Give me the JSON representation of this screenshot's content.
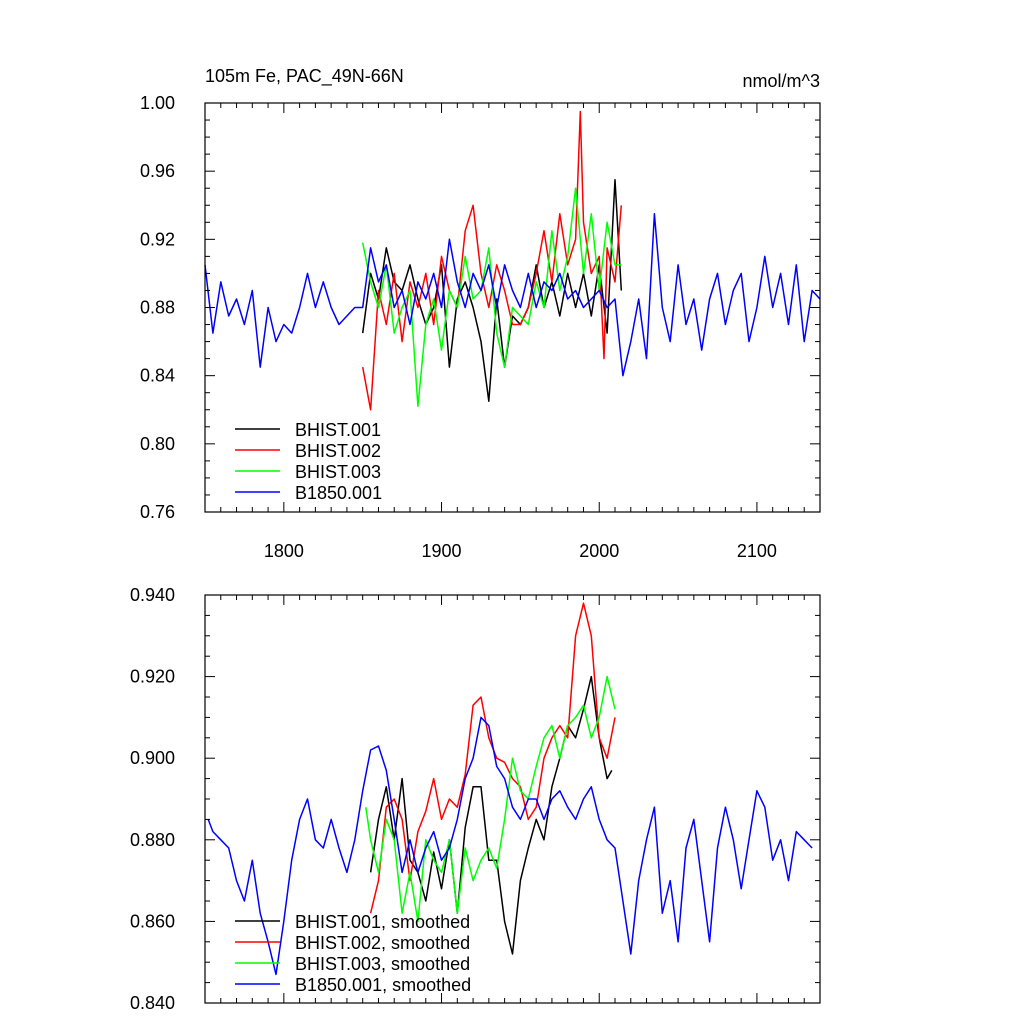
{
  "chart_data": [
    {
      "type": "line",
      "title": "105m Fe, PAC_49N-66N",
      "units": "nmol/m^3",
      "xlim": [
        1750,
        2140
      ],
      "ylim": [
        0.76,
        1.0
      ],
      "xticks": [
        1800,
        1900,
        2000,
        2100
      ],
      "xtick_labels": [
        "1800",
        "1900",
        "2000",
        "2100"
      ],
      "yticks": [
        0.76,
        0.8,
        0.84,
        0.88,
        0.92,
        0.96,
        1.0
      ],
      "ytick_labels": [
        "0.76",
        "0.80",
        "0.84",
        "0.88",
        "0.92",
        "0.96",
        "1.00"
      ],
      "legend_position": "bottom-left",
      "series": [
        {
          "name": "BHIST.001",
          "color": "#000000",
          "x": [
            1850,
            1855,
            1860,
            1865,
            1870,
            1875,
            1880,
            1885,
            1890,
            1895,
            1900,
            1905,
            1910,
            1915,
            1920,
            1925,
            1930,
            1935,
            1940,
            1945,
            1950,
            1955,
            1960,
            1965,
            1970,
            1975,
            1980,
            1985,
            1990,
            1995,
            2000,
            2005,
            2010,
            2014
          ],
          "y": [
            0.865,
            0.9,
            0.885,
            0.915,
            0.895,
            0.89,
            0.905,
            0.885,
            0.87,
            0.88,
            0.905,
            0.845,
            0.885,
            0.895,
            0.88,
            0.86,
            0.825,
            0.885,
            0.845,
            0.875,
            0.87,
            0.88,
            0.905,
            0.88,
            0.895,
            0.875,
            0.9,
            0.88,
            0.9,
            0.875,
            0.905,
            0.865,
            0.955,
            0.89
          ]
        },
        {
          "name": "BHIST.002",
          "color": "#ff0000",
          "x": [
            1850,
            1855,
            1860,
            1865,
            1870,
            1875,
            1880,
            1885,
            1890,
            1895,
            1900,
            1905,
            1910,
            1915,
            1920,
            1925,
            1930,
            1935,
            1940,
            1945,
            1950,
            1955,
            1960,
            1965,
            1970,
            1975,
            1980,
            1985,
            1988,
            1990,
            1995,
            2000,
            2003,
            2005,
            2010,
            2014
          ],
          "y": [
            0.845,
            0.82,
            0.89,
            0.87,
            0.9,
            0.86,
            0.895,
            0.88,
            0.9,
            0.87,
            0.91,
            0.89,
            0.88,
            0.925,
            0.94,
            0.9,
            0.88,
            0.905,
            0.89,
            0.87,
            0.87,
            0.88,
            0.9,
            0.925,
            0.895,
            0.935,
            0.905,
            0.92,
            0.995,
            0.93,
            0.9,
            0.91,
            0.85,
            0.915,
            0.895,
            0.94
          ]
        },
        {
          "name": "BHIST.003",
          "color": "#00ff00",
          "x": [
            1850,
            1855,
            1860,
            1865,
            1870,
            1875,
            1880,
            1885,
            1890,
            1895,
            1900,
            1905,
            1910,
            1915,
            1920,
            1925,
            1930,
            1935,
            1940,
            1945,
            1950,
            1955,
            1960,
            1965,
            1970,
            1975,
            1980,
            1985,
            1990,
            1995,
            2000,
            2005,
            2010,
            2014
          ],
          "y": [
            0.918,
            0.895,
            0.88,
            0.905,
            0.865,
            0.88,
            0.89,
            0.822,
            0.87,
            0.885,
            0.855,
            0.89,
            0.88,
            0.91,
            0.885,
            0.89,
            0.915,
            0.865,
            0.845,
            0.88,
            0.875,
            0.87,
            0.895,
            0.88,
            0.925,
            0.89,
            0.91,
            0.95,
            0.9,
            0.935,
            0.89,
            0.93,
            0.905,
            0.905
          ]
        },
        {
          "name": "B1850.001",
          "color": "#0000ff",
          "x": [
            1750,
            1755,
            1760,
            1765,
            1770,
            1775,
            1780,
            1785,
            1790,
            1795,
            1800,
            1805,
            1810,
            1815,
            1820,
            1825,
            1830,
            1835,
            1840,
            1845,
            1850,
            1855,
            1860,
            1865,
            1870,
            1875,
            1880,
            1885,
            1890,
            1895,
            1900,
            1905,
            1910,
            1915,
            1920,
            1925,
            1930,
            1935,
            1940,
            1945,
            1950,
            1955,
            1960,
            1965,
            1970,
            1975,
            1980,
            1985,
            1990,
            1995,
            2000,
            2005,
            2010,
            2015,
            2020,
            2025,
            2030,
            2035,
            2040,
            2045,
            2050,
            2055,
            2060,
            2065,
            2070,
            2075,
            2080,
            2085,
            2090,
            2095,
            2100,
            2105,
            2110,
            2115,
            2120,
            2125,
            2130,
            2135,
            2140
          ],
          "y": [
            0.905,
            0.865,
            0.895,
            0.875,
            0.885,
            0.87,
            0.89,
            0.845,
            0.88,
            0.86,
            0.87,
            0.865,
            0.88,
            0.9,
            0.88,
            0.895,
            0.88,
            0.87,
            0.875,
            0.88,
            0.88,
            0.915,
            0.895,
            0.905,
            0.88,
            0.89,
            0.87,
            0.895,
            0.885,
            0.9,
            0.88,
            0.92,
            0.895,
            0.88,
            0.9,
            0.89,
            0.905,
            0.88,
            0.905,
            0.89,
            0.88,
            0.9,
            0.88,
            0.895,
            0.89,
            0.9,
            0.885,
            0.89,
            0.88,
            0.885,
            0.89,
            0.88,
            0.885,
            0.84,
            0.86,
            0.885,
            0.85,
            0.935,
            0.88,
            0.86,
            0.905,
            0.87,
            0.885,
            0.855,
            0.885,
            0.9,
            0.87,
            0.89,
            0.9,
            0.86,
            0.88,
            0.91,
            0.88,
            0.9,
            0.87,
            0.905,
            0.86,
            0.89,
            0.885
          ]
        }
      ]
    },
    {
      "type": "line",
      "xlim": [
        1750,
        2140
      ],
      "ylim": [
        0.84,
        0.94
      ],
      "xticks": [
        1800,
        1900,
        2000,
        2100
      ],
      "yticks": [
        0.84,
        0.86,
        0.88,
        0.9,
        0.92,
        0.94
      ],
      "ytick_labels": [
        "0.840",
        "0.860",
        "0.880",
        "0.900",
        "0.920",
        "0.940"
      ],
      "legend_position": "bottom-left",
      "series": [
        {
          "name": "BHIST.001, smoothed",
          "color": "#000000",
          "x": [
            1855,
            1860,
            1865,
            1870,
            1875,
            1880,
            1885,
            1890,
            1895,
            1900,
            1905,
            1910,
            1915,
            1920,
            1925,
            1930,
            1935,
            1940,
            1945,
            1950,
            1955,
            1960,
            1965,
            1970,
            1975,
            1980,
            1985,
            1990,
            1995,
            2000,
            2005,
            2008
          ],
          "y": [
            0.872,
            0.885,
            0.893,
            0.88,
            0.895,
            0.875,
            0.872,
            0.865,
            0.877,
            0.868,
            0.88,
            0.862,
            0.883,
            0.893,
            0.893,
            0.875,
            0.875,
            0.86,
            0.852,
            0.87,
            0.878,
            0.885,
            0.88,
            0.893,
            0.9,
            0.908,
            0.905,
            0.912,
            0.92,
            0.905,
            0.895,
            0.897
          ]
        },
        {
          "name": "BHIST.002, smoothed",
          "color": "#ff0000",
          "x": [
            1855,
            1860,
            1865,
            1870,
            1875,
            1880,
            1885,
            1890,
            1895,
            1900,
            1905,
            1910,
            1915,
            1920,
            1925,
            1930,
            1935,
            1940,
            1945,
            1950,
            1955,
            1960,
            1965,
            1970,
            1975,
            1980,
            1985,
            1990,
            1995,
            2000,
            2005,
            2010
          ],
          "y": [
            0.862,
            0.87,
            0.888,
            0.89,
            0.885,
            0.87,
            0.882,
            0.887,
            0.895,
            0.885,
            0.89,
            0.888,
            0.896,
            0.913,
            0.915,
            0.905,
            0.9,
            0.899,
            0.895,
            0.893,
            0.885,
            0.888,
            0.9,
            0.905,
            0.908,
            0.905,
            0.93,
            0.938,
            0.93,
            0.905,
            0.9,
            0.91
          ]
        },
        {
          "name": "BHIST.003, smoothed",
          "color": "#00ff00",
          "x": [
            1852,
            1855,
            1860,
            1865,
            1870,
            1875,
            1880,
            1885,
            1890,
            1895,
            1900,
            1905,
            1910,
            1915,
            1920,
            1925,
            1930,
            1935,
            1940,
            1945,
            1950,
            1955,
            1960,
            1965,
            1970,
            1975,
            1980,
            1985,
            1990,
            1995,
            2000,
            2005,
            2010
          ],
          "y": [
            0.888,
            0.88,
            0.872,
            0.885,
            0.88,
            0.862,
            0.872,
            0.86,
            0.88,
            0.875,
            0.872,
            0.88,
            0.862,
            0.878,
            0.87,
            0.875,
            0.878,
            0.873,
            0.885,
            0.9,
            0.892,
            0.89,
            0.898,
            0.905,
            0.908,
            0.9,
            0.908,
            0.91,
            0.913,
            0.905,
            0.91,
            0.92,
            0.912
          ]
        },
        {
          "name": "B1850.001, smoothed",
          "color": "#0000ff",
          "x": [
            1752,
            1755,
            1760,
            1765,
            1770,
            1775,
            1780,
            1785,
            1790,
            1795,
            1800,
            1805,
            1810,
            1815,
            1820,
            1825,
            1830,
            1835,
            1840,
            1845,
            1850,
            1855,
            1860,
            1865,
            1870,
            1875,
            1880,
            1885,
            1890,
            1895,
            1900,
            1905,
            1910,
            1915,
            1920,
            1925,
            1930,
            1935,
            1940,
            1945,
            1950,
            1955,
            1960,
            1965,
            1970,
            1975,
            1980,
            1985,
            1990,
            1995,
            2000,
            2005,
            2010,
            2015,
            2020,
            2025,
            2030,
            2035,
            2040,
            2045,
            2050,
            2055,
            2060,
            2065,
            2070,
            2075,
            2080,
            2085,
            2090,
            2095,
            2100,
            2105,
            2110,
            2115,
            2120,
            2125,
            2130,
            2135
          ],
          "y": [
            0.885,
            0.882,
            0.88,
            0.878,
            0.87,
            0.865,
            0.875,
            0.862,
            0.855,
            0.847,
            0.86,
            0.875,
            0.885,
            0.89,
            0.88,
            0.878,
            0.885,
            0.878,
            0.872,
            0.88,
            0.892,
            0.902,
            0.903,
            0.897,
            0.885,
            0.872,
            0.88,
            0.872,
            0.878,
            0.882,
            0.875,
            0.878,
            0.885,
            0.895,
            0.9,
            0.91,
            0.908,
            0.898,
            0.895,
            0.888,
            0.885,
            0.89,
            0.89,
            0.885,
            0.89,
            0.892,
            0.888,
            0.885,
            0.89,
            0.893,
            0.885,
            0.88,
            0.878,
            0.865,
            0.852,
            0.87,
            0.88,
            0.888,
            0.862,
            0.87,
            0.855,
            0.878,
            0.885,
            0.87,
            0.855,
            0.878,
            0.888,
            0.88,
            0.868,
            0.88,
            0.892,
            0.888,
            0.875,
            0.88,
            0.87,
            0.882,
            0.88,
            0.878
          ]
        }
      ]
    }
  ]
}
